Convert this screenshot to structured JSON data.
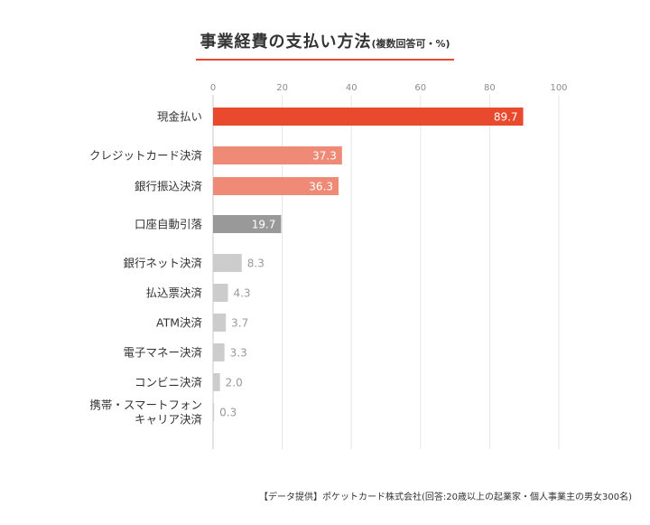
{
  "title": {
    "main": "事業経費の支払い方法",
    "note": "(複数回答可・%)"
  },
  "source": "【データ提供】ポケットカード株式会社(回答:20歳以上の起業家・個人事業主の男女300名)",
  "chart_data": {
    "type": "bar",
    "orientation": "horizontal",
    "title": "事業経費の支払い方法",
    "xlabel": "",
    "ylabel": "",
    "xlim": [
      0,
      100
    ],
    "ticks": [
      "0",
      "20",
      "40",
      "60",
      "80",
      "100"
    ],
    "grid": true,
    "categories": [
      [
        "現金払い"
      ],
      [
        "クレジットカード決済"
      ],
      [
        "銀行振込決済"
      ],
      [
        "口座自動引落"
      ],
      [
        "銀行ネット決済"
      ],
      [
        "払込票決済"
      ],
      [
        "ATM決済"
      ],
      [
        "電子マネー決済"
      ],
      [
        "コンビニ決済"
      ],
      [
        "携帯・スマートフォン",
        "キャリア決済"
      ]
    ],
    "values": [
      89.7,
      37.3,
      36.3,
      19.7,
      8.3,
      4.3,
      3.7,
      3.3,
      2.0,
      0.3
    ],
    "value_labels": [
      "89.7",
      "37.3",
      "36.3",
      "19.7",
      "8.3",
      "4.3",
      "3.7",
      "3.3",
      "2.0",
      "0.3"
    ],
    "colors": [
      "#e94a2e",
      "#ef8a76",
      "#ef8a76",
      "#999999",
      "#cccccc",
      "#cccccc",
      "#cccccc",
      "#cccccc",
      "#cccccc",
      "#cccccc"
    ]
  }
}
